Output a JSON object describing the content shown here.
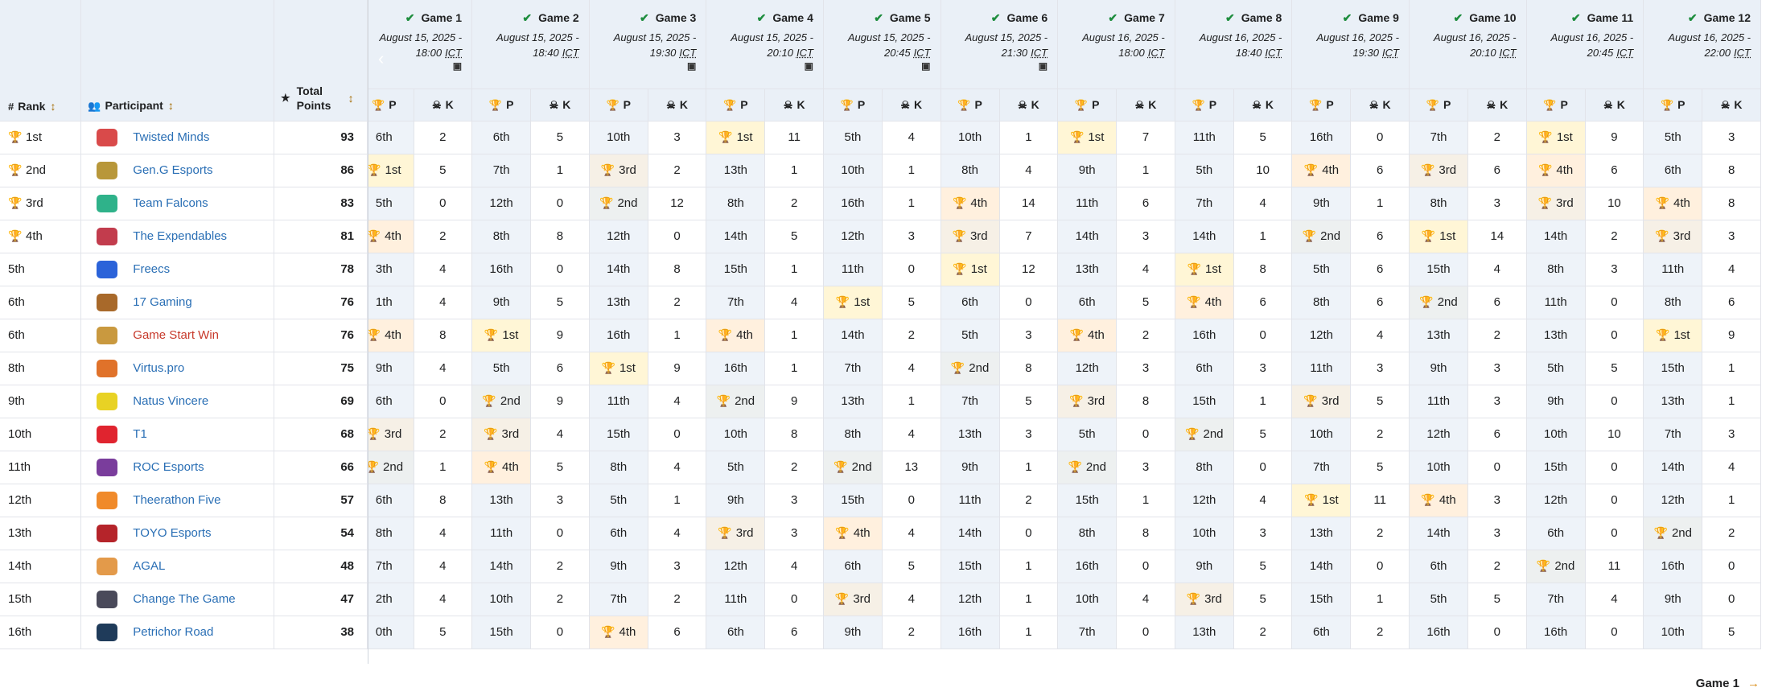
{
  "headers": {
    "rank": "Rank",
    "participant": "Participant",
    "total_points": "Total Points",
    "p": "P",
    "k": "K"
  },
  "games": [
    {
      "label": "Game 1",
      "date": "August 15, 2025 -",
      "time": "18:00",
      "tz": "ICT",
      "vod": true
    },
    {
      "label": "Game 2",
      "date": "August 15, 2025 -",
      "time": "18:40",
      "tz": "ICT",
      "vod": false
    },
    {
      "label": "Game 3",
      "date": "August 15, 2025 -",
      "time": "19:30",
      "tz": "ICT",
      "vod": true
    },
    {
      "label": "Game 4",
      "date": "August 15, 2025 -",
      "time": "20:10",
      "tz": "ICT",
      "vod": true
    },
    {
      "label": "Game 5",
      "date": "August 15, 2025 -",
      "time": "20:45",
      "tz": "ICT",
      "vod": true
    },
    {
      "label": "Game 6",
      "date": "August 15, 2025 -",
      "time": "21:30",
      "tz": "ICT",
      "vod": true
    },
    {
      "label": "Game 7",
      "date": "August 16, 2025 -",
      "time": "18:00",
      "tz": "ICT",
      "vod": false
    },
    {
      "label": "Game 8",
      "date": "August 16, 2025 -",
      "time": "18:40",
      "tz": "ICT",
      "vod": false
    },
    {
      "label": "Game 9",
      "date": "August 16, 2025 -",
      "time": "19:30",
      "tz": "ICT",
      "vod": false
    },
    {
      "label": "Game 10",
      "date": "August 16, 2025 -",
      "time": "20:10",
      "tz": "ICT",
      "vod": false
    },
    {
      "label": "Game 11",
      "date": "August 16, 2025 -",
      "time": "20:45",
      "tz": "ICT",
      "vod": false
    },
    {
      "label": "Game 12",
      "date": "August 16, 2025 -",
      "time": "22:00",
      "tz": "ICT",
      "vod": false
    }
  ],
  "colors": {
    "gold": "#d6a300",
    "silver": "#5f7378",
    "bronze": "#8e6b3c",
    "fourth": "#d98a10",
    "link": "#2a6fb5"
  },
  "rows": [
    {
      "rank": "1st",
      "trophy": 1,
      "name": "Twisted Minds",
      "logo": "#d94a4a",
      "total": "93",
      "games": [
        [
          "6th",
          2
        ],
        [
          "6th",
          5
        ],
        [
          "10th",
          3
        ],
        [
          "1st",
          11
        ],
        [
          "5th",
          4
        ],
        [
          "10th",
          1
        ],
        [
          "1st",
          7
        ],
        [
          "11th",
          5
        ],
        [
          "16th",
          0
        ],
        [
          "7th",
          2
        ],
        [
          "1st",
          9
        ],
        [
          "5th",
          3
        ]
      ]
    },
    {
      "rank": "2nd",
      "trophy": 2,
      "name": "Gen.G Esports",
      "logo": "#b8973a",
      "total": "86",
      "games": [
        [
          "1st",
          5
        ],
        [
          "7th",
          1
        ],
        [
          "3rd",
          2
        ],
        [
          "13th",
          1
        ],
        [
          "10th",
          1
        ],
        [
          "8th",
          4
        ],
        [
          "9th",
          1
        ],
        [
          "5th",
          10
        ],
        [
          "4th",
          6
        ],
        [
          "3rd",
          6
        ],
        [
          "4th",
          6
        ],
        [
          "6th",
          8
        ]
      ]
    },
    {
      "rank": "3rd",
      "trophy": 3,
      "name": "Team Falcons",
      "logo": "#2fb28a",
      "total": "83",
      "games": [
        [
          "5th",
          0
        ],
        [
          "12th",
          0
        ],
        [
          "2nd",
          12
        ],
        [
          "8th",
          2
        ],
        [
          "16th",
          1
        ],
        [
          "4th",
          14
        ],
        [
          "11th",
          6
        ],
        [
          "7th",
          4
        ],
        [
          "9th",
          1
        ],
        [
          "8th",
          3
        ],
        [
          "3rd",
          10
        ],
        [
          "4th",
          8
        ]
      ]
    },
    {
      "rank": "4th",
      "trophy": 4,
      "name": "The Expendables",
      "logo": "#c23c4d",
      "total": "81",
      "games": [
        [
          "4th",
          2
        ],
        [
          "8th",
          8
        ],
        [
          "12th",
          0
        ],
        [
          "14th",
          5
        ],
        [
          "12th",
          3
        ],
        [
          "3rd",
          7
        ],
        [
          "14th",
          3
        ],
        [
          "14th",
          1
        ],
        [
          "2nd",
          6
        ],
        [
          "1st",
          14
        ],
        [
          "14th",
          2
        ],
        [
          "3rd",
          3
        ]
      ]
    },
    {
      "rank": "5th",
      "trophy": 0,
      "name": "Freecs",
      "logo": "#2b63d9",
      "total": "78",
      "games": [
        [
          "3th",
          4
        ],
        [
          "16th",
          0
        ],
        [
          "14th",
          8
        ],
        [
          "15th",
          1
        ],
        [
          "11th",
          0
        ],
        [
          "1st",
          12
        ],
        [
          "13th",
          4
        ],
        [
          "1st",
          8
        ],
        [
          "5th",
          6
        ],
        [
          "15th",
          4
        ],
        [
          "8th",
          3
        ],
        [
          "11th",
          4
        ]
      ]
    },
    {
      "rank": "6th",
      "trophy": 0,
      "name": "17 Gaming",
      "logo": "#a8692a",
      "total": "76",
      "games": [
        [
          "1th",
          4
        ],
        [
          "9th",
          5
        ],
        [
          "13th",
          2
        ],
        [
          "7th",
          4
        ],
        [
          "1st",
          5
        ],
        [
          "6th",
          0
        ],
        [
          "6th",
          5
        ],
        [
          "4th",
          6
        ],
        [
          "8th",
          6
        ],
        [
          "2nd",
          6
        ],
        [
          "11th",
          0
        ],
        [
          "8th",
          6
        ]
      ]
    },
    {
      "rank": "6th",
      "trophy": 0,
      "name": "Game Start Win",
      "logo": "#c9993f",
      "total": "76",
      "red": true,
      "games": [
        [
          "4th",
          8
        ],
        [
          "1st",
          9
        ],
        [
          "16th",
          1
        ],
        [
          "4th",
          1
        ],
        [
          "14th",
          2
        ],
        [
          "5th",
          3
        ],
        [
          "4th",
          2
        ],
        [
          "16th",
          0
        ],
        [
          "12th",
          4
        ],
        [
          "13th",
          2
        ],
        [
          "13th",
          0
        ],
        [
          "1st",
          9
        ]
      ]
    },
    {
      "rank": "8th",
      "trophy": 0,
      "name": "Virtus.pro",
      "logo": "#e0722a",
      "total": "75",
      "games": [
        [
          "9th",
          4
        ],
        [
          "5th",
          6
        ],
        [
          "1st",
          9
        ],
        [
          "16th",
          1
        ],
        [
          "7th",
          4
        ],
        [
          "2nd",
          8
        ],
        [
          "12th",
          3
        ],
        [
          "6th",
          3
        ],
        [
          "11th",
          3
        ],
        [
          "9th",
          3
        ],
        [
          "5th",
          5
        ],
        [
          "15th",
          1
        ]
      ]
    },
    {
      "rank": "9th",
      "trophy": 0,
      "name": "Natus Vincere",
      "logo": "#e8d224",
      "total": "69",
      "games": [
        [
          "6th",
          0
        ],
        [
          "2nd",
          9
        ],
        [
          "11th",
          4
        ],
        [
          "2nd",
          9
        ],
        [
          "13th",
          1
        ],
        [
          "7th",
          5
        ],
        [
          "3rd",
          8
        ],
        [
          "15th",
          1
        ],
        [
          "3rd",
          5
        ],
        [
          "11th",
          3
        ],
        [
          "9th",
          0
        ],
        [
          "13th",
          1
        ]
      ]
    },
    {
      "rank": "10th",
      "trophy": 0,
      "name": "T1",
      "logo": "#e0242f",
      "total": "68",
      "games": [
        [
          "3rd",
          2
        ],
        [
          "3rd",
          4
        ],
        [
          "15th",
          0
        ],
        [
          "10th",
          8
        ],
        [
          "8th",
          4
        ],
        [
          "13th",
          3
        ],
        [
          "5th",
          0
        ],
        [
          "2nd",
          5
        ],
        [
          "10th",
          2
        ],
        [
          "12th",
          6
        ],
        [
          "10th",
          10
        ],
        [
          "7th",
          3
        ]
      ]
    },
    {
      "rank": "11th",
      "trophy": 0,
      "name": "ROC Esports",
      "logo": "#7a3d9c",
      "total": "66",
      "games": [
        [
          "2nd",
          1
        ],
        [
          "4th",
          5
        ],
        [
          "8th",
          4
        ],
        [
          "5th",
          2
        ],
        [
          "2nd",
          13
        ],
        [
          "9th",
          1
        ],
        [
          "2nd",
          3
        ],
        [
          "8th",
          0
        ],
        [
          "7th",
          5
        ],
        [
          "10th",
          0
        ],
        [
          "15th",
          0
        ],
        [
          "14th",
          4
        ]
      ]
    },
    {
      "rank": "12th",
      "trophy": 0,
      "name": "Theerathon Five",
      "logo": "#f08a2a",
      "total": "57",
      "games": [
        [
          "6th",
          8
        ],
        [
          "13th",
          3
        ],
        [
          "5th",
          1
        ],
        [
          "9th",
          3
        ],
        [
          "15th",
          0
        ],
        [
          "11th",
          2
        ],
        [
          "15th",
          1
        ],
        [
          "12th",
          4
        ],
        [
          "1st",
          11
        ],
        [
          "4th",
          3
        ],
        [
          "12th",
          0
        ],
        [
          "12th",
          1
        ]
      ]
    },
    {
      "rank": "13th",
      "trophy": 0,
      "name": "TOYO Esports",
      "logo": "#b5242a",
      "total": "54",
      "games": [
        [
          "8th",
          4
        ],
        [
          "11th",
          0
        ],
        [
          "6th",
          4
        ],
        [
          "3rd",
          3
        ],
        [
          "4th",
          4
        ],
        [
          "14th",
          0
        ],
        [
          "8th",
          8
        ],
        [
          "10th",
          3
        ],
        [
          "13th",
          2
        ],
        [
          "14th",
          3
        ],
        [
          "6th",
          0
        ],
        [
          "2nd",
          2
        ]
      ]
    },
    {
      "rank": "14th",
      "trophy": 0,
      "name": "AGAL",
      "logo": "#e39a4a",
      "total": "48",
      "games": [
        [
          "7th",
          4
        ],
        [
          "14th",
          2
        ],
        [
          "9th",
          3
        ],
        [
          "12th",
          4
        ],
        [
          "6th",
          5
        ],
        [
          "15th",
          1
        ],
        [
          "16th",
          0
        ],
        [
          "9th",
          5
        ],
        [
          "14th",
          0
        ],
        [
          "6th",
          2
        ],
        [
          "2nd",
          11
        ],
        [
          "16th",
          0
        ]
      ]
    },
    {
      "rank": "15th",
      "trophy": 0,
      "name": "Change The Game",
      "logo": "#4a4a5a",
      "total": "47",
      "games": [
        [
          "2th",
          4
        ],
        [
          "10th",
          2
        ],
        [
          "7th",
          2
        ],
        [
          "11th",
          0
        ],
        [
          "3rd",
          4
        ],
        [
          "12th",
          1
        ],
        [
          "10th",
          4
        ],
        [
          "3rd",
          5
        ],
        [
          "15th",
          1
        ],
        [
          "5th",
          5
        ],
        [
          "7th",
          4
        ],
        [
          "9th",
          0
        ]
      ]
    },
    {
      "rank": "16th",
      "trophy": 0,
      "name": "Petrichor Road",
      "logo": "#1f3b5a",
      "total": "38",
      "games": [
        [
          "0th",
          5
        ],
        [
          "15th",
          0
        ],
        [
          "4th",
          6
        ],
        [
          "6th",
          6
        ],
        [
          "9th",
          2
        ],
        [
          "16th",
          1
        ],
        [
          "7th",
          0
        ],
        [
          "13th",
          2
        ],
        [
          "6th",
          2
        ],
        [
          "16th",
          0
        ],
        [
          "16th",
          0
        ],
        [
          "10th",
          5
        ]
      ]
    }
  ],
  "footer": {
    "label": "Game 1"
  }
}
